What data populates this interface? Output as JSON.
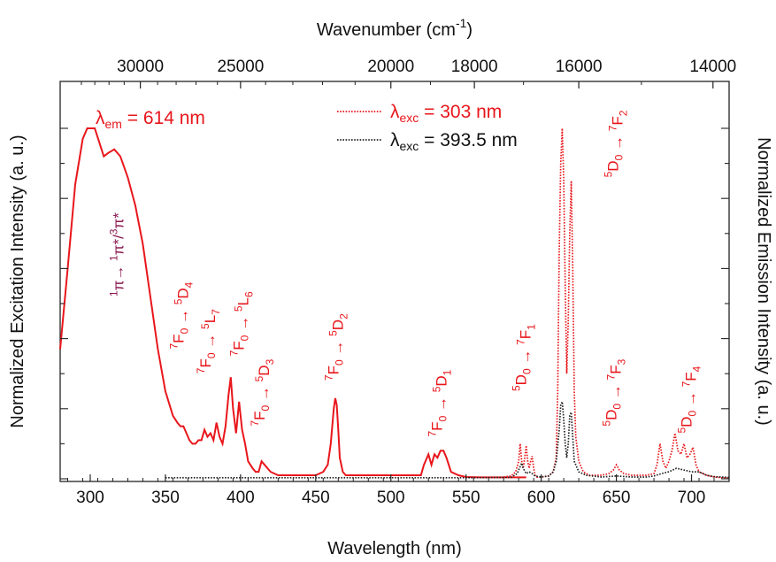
{
  "chart_data": {
    "type": "line",
    "xlabel": "Wavelength (nm)",
    "x2label": "Wavenumber (cm-1)",
    "ylabel_left": "Normalized Excitation Intensity (a. u.)",
    "ylabel_right": "Normalized Emission Intensity (a. u.)",
    "xlim": [
      280,
      725
    ],
    "ylim": [
      0,
      1.05
    ],
    "xticks": [
      300,
      350,
      400,
      450,
      500,
      550,
      600,
      650,
      700
    ],
    "x2ticks": [
      30000,
      25000,
      20000,
      18000,
      16000,
      14000
    ],
    "grid": false,
    "em_label": {
      "symbol": "λ",
      "sub": "em",
      "rest": " = 614 nm"
    },
    "legend": [
      {
        "symbol": "λ",
        "sub": "exc",
        "rest": " = 303 nm",
        "color": "#e8161b",
        "dash": "dotted"
      },
      {
        "symbol": "λ",
        "sub": "exc",
        "rest": " = 393.5 nm",
        "color": "#222222",
        "dash": "dotted"
      }
    ],
    "series": [
      {
        "color": "#e8161b",
        "style": "solid",
        "x": [
          280,
          285,
          290,
          295,
          298,
          300,
          303,
          306,
          309,
          312,
          316,
          320,
          325,
          330,
          335,
          340,
          345,
          350,
          355,
          358,
          360,
          362,
          364,
          366,
          368,
          370,
          372,
          374,
          376,
          378,
          380,
          382,
          384,
          386,
          388,
          390,
          392,
          393.5,
          395,
          397,
          399,
          401,
          403,
          405,
          408,
          410,
          412,
          414,
          416,
          418,
          420,
          425,
          430,
          435,
          440,
          445,
          450,
          455,
          458,
          460,
          462,
          463,
          464,
          465,
          466,
          468,
          470,
          475,
          480,
          490,
          500,
          510,
          515,
          520,
          522,
          525,
          527,
          529,
          531,
          533,
          535,
          537,
          540,
          545,
          550,
          560,
          570,
          580,
          590
        ],
        "y": [
          0.37,
          0.6,
          0.84,
          0.97,
          1.0,
          1.0,
          1.0,
          0.96,
          0.92,
          0.93,
          0.94,
          0.92,
          0.86,
          0.78,
          0.67,
          0.52,
          0.37,
          0.25,
          0.18,
          0.16,
          0.15,
          0.15,
          0.13,
          0.11,
          0.1,
          0.1,
          0.11,
          0.11,
          0.14,
          0.12,
          0.13,
          0.11,
          0.16,
          0.12,
          0.1,
          0.15,
          0.24,
          0.29,
          0.2,
          0.13,
          0.22,
          0.14,
          0.1,
          0.05,
          0.03,
          0.02,
          0.02,
          0.05,
          0.04,
          0.03,
          0.02,
          0.01,
          0.01,
          0.01,
          0.01,
          0.01,
          0.01,
          0.02,
          0.04,
          0.1,
          0.2,
          0.23,
          0.21,
          0.14,
          0.06,
          0.02,
          0.01,
          0.01,
          0.01,
          0.01,
          0.01,
          0.01,
          0.01,
          0.01,
          0.04,
          0.07,
          0.04,
          0.07,
          0.06,
          0.08,
          0.08,
          0.06,
          0.02,
          0.01,
          0.005,
          0.004,
          0.004,
          0.004,
          0.004
        ]
      },
      {
        "color": "#e8161b",
        "style": "dotted",
        "x": [
          575,
          580,
          583,
          585,
          586,
          587,
          588,
          589,
          590,
          591,
          592,
          593,
          594,
          595,
          596,
          597,
          600,
          605,
          608,
          610,
          611,
          612,
          613,
          614,
          615,
          616,
          617,
          618,
          619,
          620,
          621,
          622,
          623,
          625,
          628,
          632,
          640,
          645,
          648,
          650,
          652,
          655,
          660,
          670,
          675,
          677,
          679,
          681,
          683,
          685,
          687,
          689,
          691,
          693,
          695,
          697,
          699,
          701,
          703,
          705,
          710,
          715,
          720,
          725
        ],
        "y": [
          0.005,
          0.008,
          0.02,
          0.05,
          0.1,
          0.05,
          0.03,
          0.06,
          0.095,
          0.05,
          0.03,
          0.05,
          0.065,
          0.03,
          0.01,
          0.005,
          0.005,
          0.008,
          0.02,
          0.06,
          0.25,
          0.65,
          0.9,
          1.0,
          0.85,
          0.55,
          0.3,
          0.45,
          0.7,
          0.85,
          0.6,
          0.25,
          0.12,
          0.05,
          0.02,
          0.01,
          0.01,
          0.015,
          0.025,
          0.04,
          0.025,
          0.015,
          0.01,
          0.01,
          0.015,
          0.04,
          0.1,
          0.05,
          0.03,
          0.05,
          0.08,
          0.13,
          0.08,
          0.07,
          0.1,
          0.06,
          0.07,
          0.09,
          0.04,
          0.02,
          0.01,
          0.005,
          0.003,
          0.002
        ]
      },
      {
        "color": "#222222",
        "style": "dotted",
        "x": [
          350,
          400,
          450,
          500,
          550,
          580,
          584,
          586,
          587,
          588,
          590,
          592,
          594,
          596,
          600,
          605,
          608,
          610,
          612,
          613,
          614,
          615,
          616,
          617,
          618,
          619,
          620,
          621,
          622,
          625,
          630,
          640,
          650,
          660,
          670,
          675,
          680,
          685,
          690,
          695,
          700,
          705,
          710,
          715,
          725
        ],
        "y": [
          0.003,
          0.003,
          0.003,
          0.003,
          0.003,
          0.004,
          0.015,
          0.035,
          0.045,
          0.03,
          0.015,
          0.02,
          0.015,
          0.008,
          0.005,
          0.008,
          0.02,
          0.05,
          0.14,
          0.21,
          0.22,
          0.17,
          0.1,
          0.06,
          0.1,
          0.18,
          0.19,
          0.12,
          0.05,
          0.02,
          0.01,
          0.005,
          0.008,
          0.005,
          0.005,
          0.008,
          0.015,
          0.02,
          0.03,
          0.025,
          0.02,
          0.02,
          0.01,
          0.006,
          0.004
        ]
      }
    ],
    "annotations": [
      {
        "sup": "1",
        "base": "π→ ",
        "sup2": "1",
        "base2": "π*/",
        "sup3": "3",
        "base3": "π*",
        "color": "#8b1a50",
        "x": 322,
        "y": 0.52
      },
      {
        "parts": [
          [
            "7",
            "F"
          ],
          [
            "0",
            ""
          ]
        ],
        "text": "7F0 → 5D4",
        "color": "#e8161b",
        "x": 362,
        "y": 0.37
      },
      {
        "text": "7F0 → 5L7",
        "color": "#e8161b",
        "x": 380,
        "y": 0.3
      },
      {
        "text": "7F0 → 5L6",
        "color": "#e8161b",
        "x": 402,
        "y": 0.35
      },
      {
        "text": "7F0 → 5D3",
        "color": "#e8161b",
        "x": 416,
        "y": 0.15
      },
      {
        "text": "7F0 → 5D2",
        "color": "#e8161b",
        "x": 465,
        "y": 0.28
      },
      {
        "text": "7F0 → 5D1",
        "color": "#e8161b",
        "x": 534,
        "y": 0.12
      },
      {
        "text": "5D0 → 7F1",
        "color": "#e8161b",
        "x": 590,
        "y": 0.25
      },
      {
        "text": "5D0 → 7F2",
        "color": "#e8161b",
        "x": 651,
        "y": 0.86
      },
      {
        "text": "5D0 → 7F3",
        "color": "#e8161b",
        "x": 650,
        "y": 0.15
      },
      {
        "text": "5D0 → 7F4",
        "color": "#e8161b",
        "x": 700,
        "y": 0.13
      }
    ]
  }
}
